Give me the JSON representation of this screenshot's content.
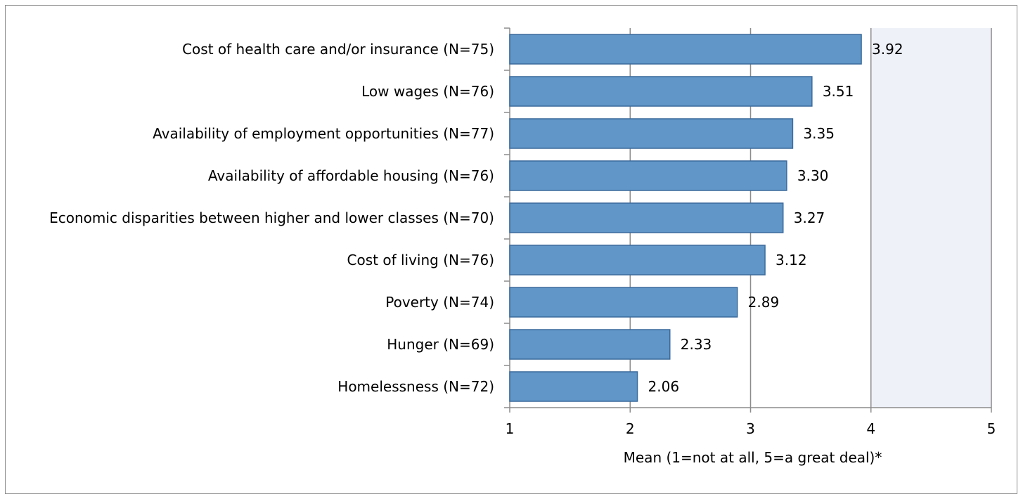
{
  "chart_data": {
    "type": "bar",
    "orientation": "horizontal",
    "categories": [
      "Cost of health care and/or insurance (N=75)",
      "Low wages (N=76)",
      "Availability of employment opportunities (N=77)",
      "Availability of affordable housing (N=76)",
      "Economic disparities between higher and lower classes (N=70)",
      "Cost of living (N=76)",
      "Poverty (N=74)",
      "Hunger (N=69)",
      "Homelessness (N=72)"
    ],
    "values": [
      3.92,
      3.51,
      3.35,
      3.3,
      3.27,
      3.12,
      2.89,
      2.33,
      2.06
    ],
    "value_labels": [
      "3.92",
      "3.51",
      "3.35",
      "3.30",
      "3.27",
      "3.12",
      "2.89",
      "2.33",
      "2.06"
    ],
    "title": "",
    "xlabel": "Mean (1=not at all, 5=a great deal)*",
    "ylabel": "",
    "xlim": [
      1,
      5
    ],
    "x_ticks": [
      "1",
      "2",
      "3",
      "4",
      "5"
    ],
    "grid": true,
    "shaded_region": [
      4,
      5
    ],
    "colors": {
      "bar_fill": "#6096c8",
      "bar_stroke": "#3b6a9c",
      "gridline": "#8c8c8c",
      "shaded_region": "#eef1f8"
    }
  }
}
